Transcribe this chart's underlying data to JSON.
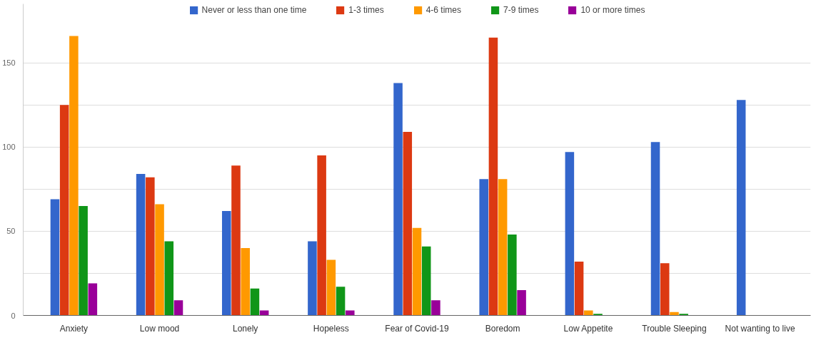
{
  "chart_data": {
    "type": "bar",
    "categories": [
      "Anxiety",
      "Low mood",
      "Lonely",
      "Hopeless",
      "Fear of Covid-19",
      "Boredom",
      "Low Appetite",
      "Trouble Sleeping",
      "Not wanting to live"
    ],
    "series": [
      {
        "name": "Never or less than one time",
        "color": "#3366cc",
        "values": [
          69,
          84,
          62,
          44,
          138,
          81,
          97,
          103,
          128
        ]
      },
      {
        "name": "1-3 times",
        "color": "#dc3912",
        "values": [
          125,
          82,
          89,
          95,
          109,
          165,
          32,
          31,
          0
        ]
      },
      {
        "name": "4-6 times",
        "color": "#ff9900",
        "values": [
          166,
          66,
          40,
          33,
          52,
          81,
          3,
          2,
          0
        ]
      },
      {
        "name": "7-9 times",
        "color": "#109618",
        "values": [
          65,
          44,
          16,
          17,
          41,
          48,
          1,
          1,
          0
        ]
      },
      {
        "name": "10 or more times",
        "color": "#990099",
        "values": [
          19,
          9,
          3,
          3,
          9,
          15,
          0,
          0,
          0
        ]
      }
    ],
    "ylim": [
      0,
      185
    ],
    "yticks": [
      0,
      {
        "value": 25,
        "label": null
      },
      50,
      {
        "value": 75,
        "label": null
      },
      100,
      {
        "value": 125,
        "label": null
      },
      150
    ],
    "grid": "y",
    "legend": "top"
  }
}
